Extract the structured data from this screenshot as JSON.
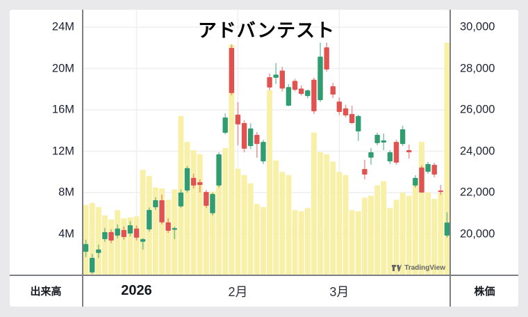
{
  "window": {
    "background": "#e9e9eb",
    "card_background": "#ffffff"
  },
  "title": "アドバンテスト",
  "left_axis": {
    "title": "出来高"
  },
  "right_axis": {
    "title": "株価"
  },
  "watermark": {
    "text": "TradingView"
  },
  "colors": {
    "up": "#2f9d70",
    "down": "#e15351",
    "volume_bar": "#f8f0a6",
    "grid": "#efeff3",
    "axis_line": "#7c7e85",
    "label": "#1c2333",
    "title_text": "#050505",
    "watermark_text": "#4a4e59"
  },
  "chart_data": {
    "type": "candlestick_with_volume",
    "title": "アドバンテスト",
    "legend_position": "none",
    "grid": true,
    "price_axis": {
      "side": "right",
      "label": "株価",
      "min": 18000,
      "max": 30500,
      "tick_step": 2000,
      "ticks": [
        30000,
        28000,
        26000,
        24000,
        22000,
        20000
      ],
      "tick_labels": [
        "30,000",
        "28,000",
        "26,000",
        "24,000",
        "22,000",
        "20,000"
      ]
    },
    "volume_axis": {
      "side": "left",
      "label": "出来高",
      "unit": "M",
      "min": 0,
      "max": 25,
      "tick_step": 4,
      "ticks": [
        24,
        20,
        16,
        12,
        8,
        4
      ],
      "tick_labels": [
        "24M",
        "20M",
        "16M",
        "12M",
        "8M",
        "4M"
      ]
    },
    "x_ticks": [
      {
        "label": "2026",
        "index": 8,
        "emphasis": true
      },
      {
        "label": "2月",
        "index": 24,
        "emphasis": false
      },
      {
        "label": "3月",
        "index": 40,
        "emphasis": false
      }
    ],
    "columns": [
      "open",
      "high",
      "low",
      "close",
      "volume_millions"
    ],
    "bars": [
      [
        19140,
        19720,
        18880,
        19510,
        6.8
      ],
      [
        18140,
        19040,
        18070,
        18840,
        7.0
      ],
      [
        19080,
        19480,
        18840,
        19250,
        6.6
      ],
      [
        19750,
        20290,
        19620,
        20090,
        5.8
      ],
      [
        20090,
        20220,
        19550,
        19680,
        5.4
      ],
      [
        19920,
        20460,
        19790,
        20260,
        6.3
      ],
      [
        20190,
        20360,
        19720,
        19850,
        5.5
      ],
      [
        20020,
        20620,
        19890,
        20420,
        5.6
      ],
      [
        20260,
        20420,
        19680,
        19820,
        5.7
      ],
      [
        19620,
        19800,
        19240,
        19750,
        10.2
      ],
      [
        20220,
        21280,
        20120,
        21160,
        9.6
      ],
      [
        21290,
        21770,
        21160,
        21630,
        8.5
      ],
      [
        21630,
        21900,
        20460,
        20560,
        8.4
      ],
      [
        20560,
        20760,
        20050,
        20150,
        7.3
      ],
      [
        20200,
        20350,
        19750,
        20280,
        8.3
      ],
      [
        21330,
        22150,
        21260,
        22000,
        15.4
      ],
      [
        22100,
        23280,
        22000,
        23180,
        12.9
      ],
      [
        22710,
        22910,
        22200,
        22340,
        12.1
      ],
      [
        22500,
        22640,
        22000,
        22370,
        11.7
      ],
      [
        22030,
        22130,
        21260,
        21360,
        8.0
      ],
      [
        21000,
        22000,
        20890,
        21930,
        8.1
      ],
      [
        22340,
        23950,
        22240,
        23850,
        11.5
      ],
      [
        24890,
        25830,
        24820,
        25630,
        12.3
      ],
      [
        28990,
        29160,
        26710,
        26810,
        22.3
      ],
      [
        25770,
        26370,
        24290,
        25300,
        10.3
      ],
      [
        25360,
        25500,
        23950,
        24120,
        9.7
      ],
      [
        24250,
        25350,
        24100,
        25100,
        8.9
      ],
      [
        24790,
        24930,
        23680,
        24350,
        6.9
      ],
      [
        23510,
        24550,
        23380,
        24450,
        6.6
      ],
      [
        27580,
        27760,
        26950,
        27080,
        17.9
      ],
      [
        27550,
        28260,
        27250,
        27700,
        11.1
      ],
      [
        27900,
        28080,
        26890,
        27030,
        10.0
      ],
      [
        26200,
        27240,
        26170,
        27100,
        9.7
      ],
      [
        27400,
        27500,
        26890,
        26970,
        6.3
      ],
      [
        27030,
        27180,
        26690,
        26770,
        6.2
      ],
      [
        26670,
        26990,
        26560,
        26940,
        6.5
      ],
      [
        27460,
        27560,
        25800,
        25930,
        13.8
      ],
      [
        26470,
        29250,
        26380,
        28570,
        11.9
      ],
      [
        29020,
        29250,
        27850,
        27950,
        11.7
      ],
      [
        27140,
        27310,
        26570,
        26740,
        11.0
      ],
      [
        26400,
        26600,
        25750,
        25900,
        10.0
      ],
      [
        26070,
        26250,
        25630,
        25730,
        9.7
      ],
      [
        25800,
        26200,
        25310,
        25360,
        6.3
      ],
      [
        24960,
        25760,
        24500,
        25700,
        6.2
      ],
      [
        23140,
        23580,
        22640,
        22870,
        7.5
      ],
      [
        23690,
        24150,
        23350,
        23950,
        7.7
      ],
      [
        24390,
        24890,
        24290,
        24790,
        8.7
      ],
      [
        24420,
        24860,
        24050,
        24520,
        9.1
      ],
      [
        23510,
        24050,
        23380,
        23950,
        6.5
      ],
      [
        24450,
        24550,
        23350,
        23450,
        7.3
      ],
      [
        24350,
        25230,
        24250,
        25060,
        8.0
      ],
      [
        24050,
        24320,
        23640,
        23950,
        7.7
      ],
      [
        22340,
        22840,
        22240,
        22710,
        9.1
      ],
      [
        23210,
        23310,
        21990,
        22000,
        12.9
      ],
      [
        23010,
        23480,
        22910,
        23380,
        8.0
      ],
      [
        23340,
        23440,
        22740,
        22870,
        7.4
      ],
      [
        22100,
        22370,
        21890,
        22030,
        8.0
      ],
      [
        19920,
        21050,
        19820,
        20550,
        22.5
      ]
    ]
  }
}
